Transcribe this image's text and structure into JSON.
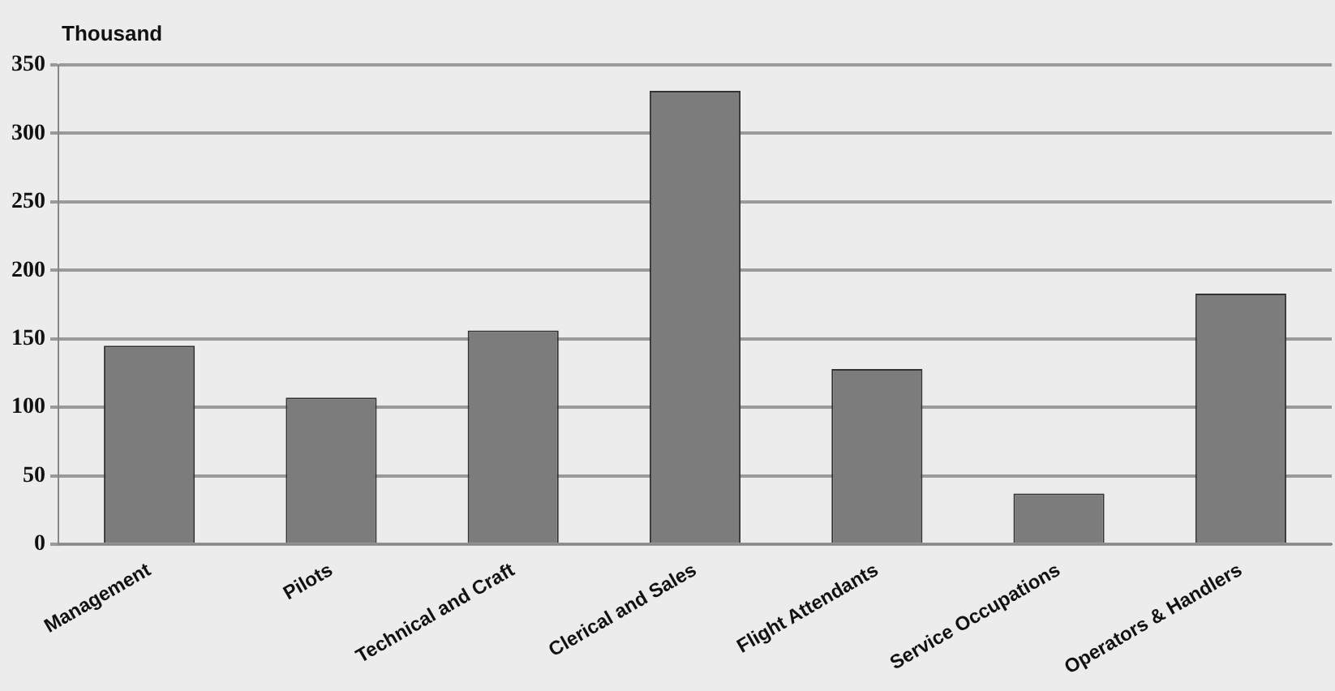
{
  "chart_data": {
    "type": "bar",
    "ylabel": "Thousand",
    "categories": [
      "Management",
      "Pilots",
      "Technical and Craft",
      "Clerical and Sales",
      "Flight Attendants",
      "Service Occupations",
      "Operators & Handlers"
    ],
    "values": [
      145,
      107,
      156,
      331,
      128,
      37,
      183
    ],
    "color": "#7c7c7c",
    "ylim": [
      0,
      350
    ],
    "yticks": [
      0,
      50,
      100,
      150,
      200,
      250,
      300,
      350
    ],
    "grid": "y",
    "legend": false
  }
}
